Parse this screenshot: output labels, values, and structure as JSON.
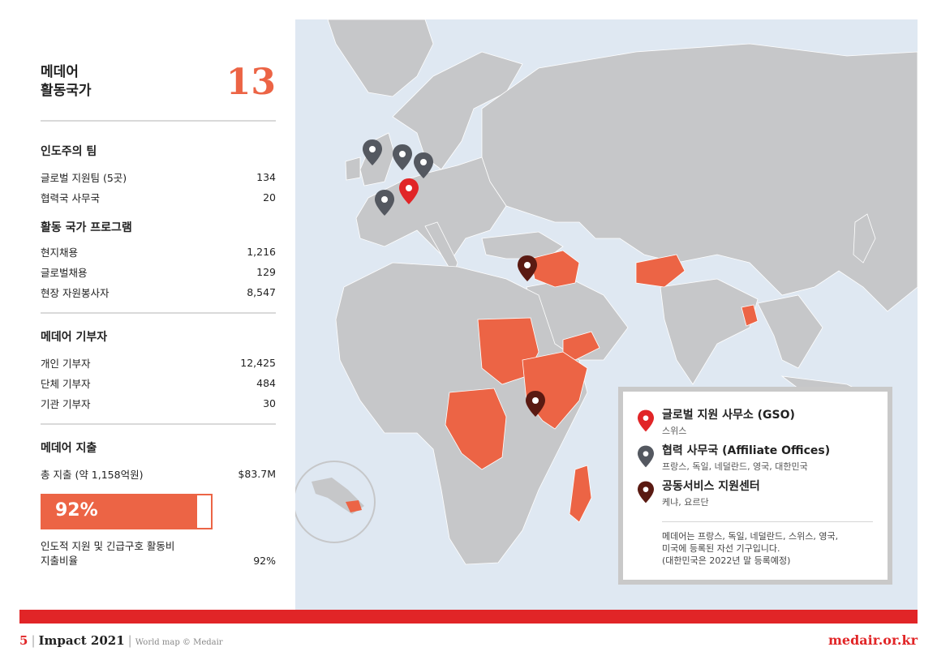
{
  "summary": {
    "title_line1": "메데어",
    "title_line2": "활동국가",
    "country_count": "13"
  },
  "teams": {
    "heading": "인도주의 팀",
    "rows": [
      {
        "label": "글로벌 지원팀 (5곳)",
        "value": "134"
      },
      {
        "label": "협력국 사무국",
        "value": "20"
      }
    ],
    "program_heading": "활동 국가 프로그램",
    "program_rows": [
      {
        "label": "현지채용",
        "value": "1,216"
      },
      {
        "label": "글로벌채용",
        "value": "129"
      },
      {
        "label": "현장 자원봉사자",
        "value": "8,547"
      }
    ]
  },
  "donors": {
    "heading": "메데어 기부자",
    "rows": [
      {
        "label": "개인 기부자",
        "value": "12,425"
      },
      {
        "label": "단체 기부자",
        "value": "484"
      },
      {
        "label": "기관 기부자",
        "value": "30"
      }
    ]
  },
  "spending": {
    "heading": "메데어 지출",
    "total_label": "총 지출 (약 1,158억원)",
    "total_value": "$83.7M",
    "percent_label": "92%",
    "percent_fraction": 0.92,
    "note_line1": "인도적 지원 및 긴급구호 활동비",
    "note_line2": "지출비율",
    "note_value": "92%"
  },
  "legend": {
    "gso_title": "글로벌 지원 사무소 (GSO)",
    "gso_sub": "스위스",
    "affiliate_title": "협력 사무국 (Affiliate Offices)",
    "affiliate_sub": "프랑스, 독일, 네덜란드, 영국, 대한민국",
    "shared_title": "공동서비스 지원센터",
    "shared_sub": "케냐, 요르단",
    "note_line1": "메데어는 프랑스, 독일, 네덜란드, 스위스, 영국,",
    "note_line2": "미국에 등록된 자선 기구입니다.",
    "note_line3": "(대한민국은 2022년 말 등록예정)"
  },
  "footer": {
    "page_number": "5",
    "publication": "Impact 2021",
    "credit": "World map © Medair",
    "site": "medair.or.kr"
  },
  "colors": {
    "accent": "#ec6445",
    "red": "#e12527",
    "land": "#c6c7c9",
    "sea": "#dfe8f2",
    "pin_gray": "#545860",
    "pin_red": "#e12527",
    "pin_dark": "#5a1a12"
  }
}
